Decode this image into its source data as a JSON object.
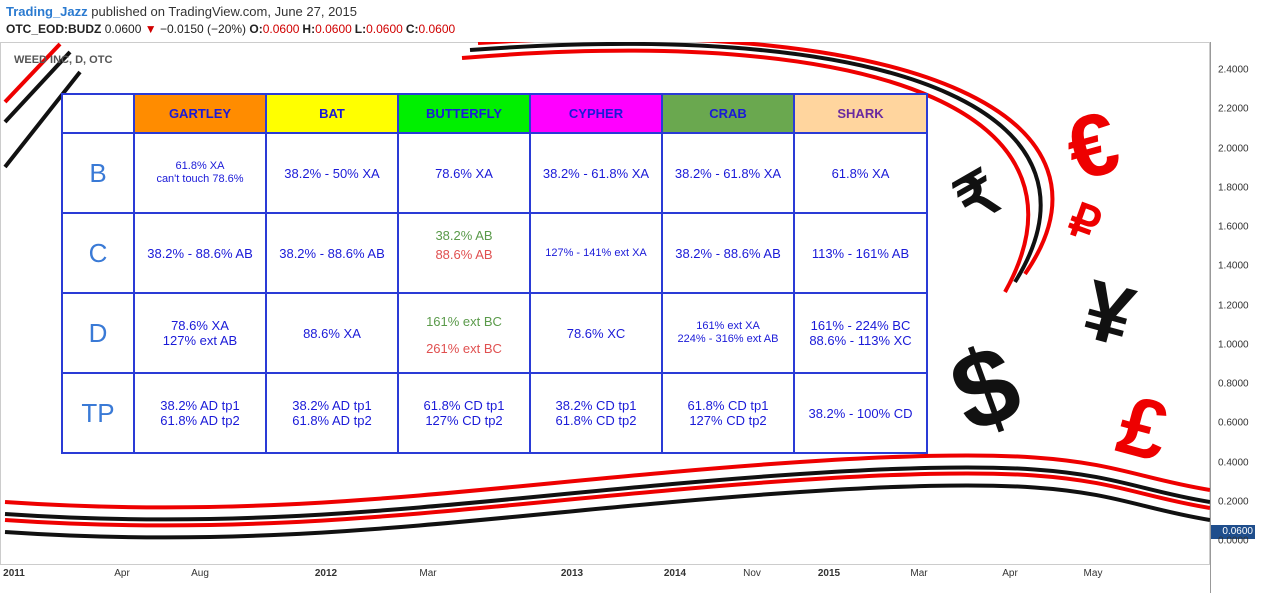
{
  "header": {
    "author": "Trading_Jazz",
    "published": "published on TradingView.com, June 27, 2015",
    "symbol": "OTC_EOD:BUDZ",
    "price": "0.0600",
    "change": "−0.0150 (−20%)",
    "ohlc": [
      {
        "label": "O:",
        "value": "0.0600"
      },
      {
        "label": "H:",
        "value": "0.0600"
      },
      {
        "label": "L:",
        "value": "0.0600"
      },
      {
        "label": "C:",
        "value": "0.0600"
      }
    ]
  },
  "chart_label": "WEED INC, D, OTC",
  "y_axis": [
    "2.4000",
    "2.2000",
    "2.0000",
    "1.8000",
    "1.6000",
    "1.4000",
    "1.2000",
    "1.0000",
    "0.8000",
    "0.6000",
    "0.4000",
    "0.2000",
    "0.0000"
  ],
  "last_price": "0.0600",
  "x_axis": [
    "2011",
    "Apr",
    "Aug",
    "2012",
    "Mar",
    "2013",
    "2014",
    "Nov",
    "2015",
    "Mar",
    "Apr",
    "May"
  ],
  "symbols": [
    "₹",
    "€",
    "₽",
    "¥",
    "$",
    "£"
  ],
  "table": {
    "columns": [
      "GARTLEY",
      "BAT",
      "BUTTERFLY",
      "CYPHER",
      "CRAB",
      "SHARK"
    ],
    "rows": [
      {
        "label": "B",
        "cells": [
          [
            "61.8% XA",
            "can't  touch 78.6%"
          ],
          [
            "38.2% - 50% XA"
          ],
          [
            "78.6% XA"
          ],
          [
            "38.2% - 61.8% XA"
          ],
          [
            "38.2% - 61.8% XA"
          ],
          [
            "61.8% XA"
          ]
        ]
      },
      {
        "label": "C",
        "cells": [
          [
            "38.2% - 88.6% AB"
          ],
          [
            "38.2% - 88.6% AB"
          ],
          [
            "38.2% AB",
            "88.6% AB"
          ],
          [
            "127% - 141% ext XA"
          ],
          [
            "38.2% - 88.6% AB"
          ],
          [
            "113% - 161% AB"
          ]
        ]
      },
      {
        "label": "D",
        "cells": [
          [
            "78.6% XA",
            "127% ext AB"
          ],
          [
            "88.6% XA"
          ],
          [
            "161% ext BC",
            "261% ext BC"
          ],
          [
            "78.6% XC"
          ],
          [
            "161% ext XA",
            "224% - 316% ext AB"
          ],
          [
            "161% - 224% BC",
            "88.6% - 113% XC"
          ]
        ]
      },
      {
        "label": "TP",
        "cells": [
          [
            "38.2% AD tp1",
            "61.8% AD tp2"
          ],
          [
            "38.2% AD tp1",
            "61.8% AD tp2"
          ],
          [
            "61.8% CD tp1",
            "127% CD tp2"
          ],
          [
            "38.2%  CD tp1",
            "61.8% CD tp2"
          ],
          [
            "61.8% CD tp1",
            "127% CD tp2"
          ],
          [
            "38.2% - 100% CD"
          ]
        ]
      }
    ]
  }
}
